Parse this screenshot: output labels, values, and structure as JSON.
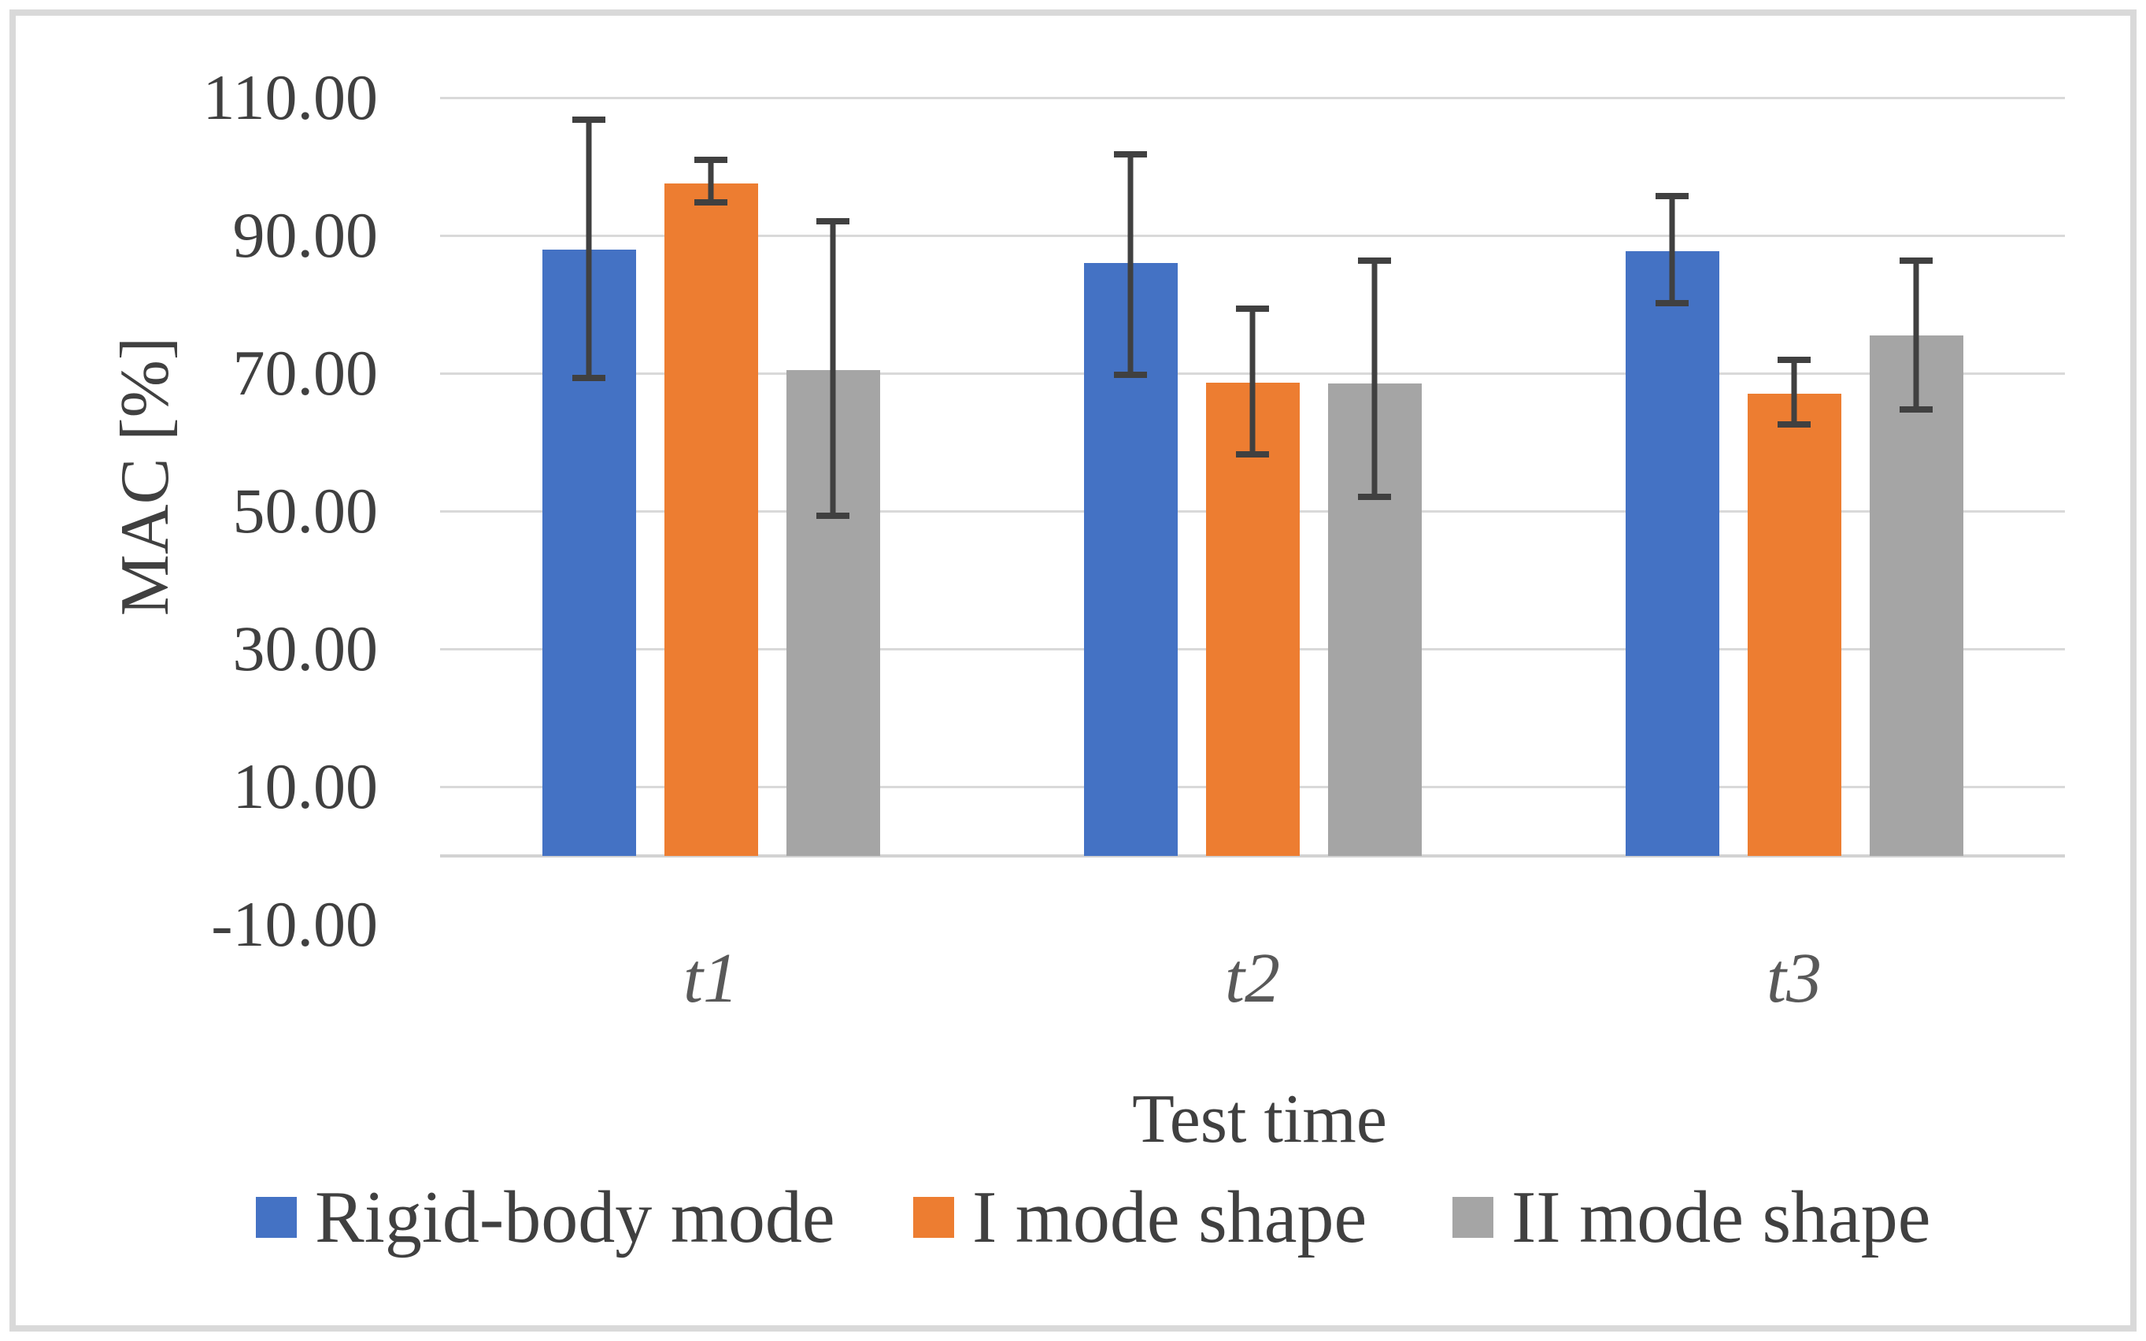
{
  "chart_data": {
    "type": "bar",
    "title": "",
    "xlabel": "Test time",
    "ylabel": "MAC [%]",
    "categories": [
      "t1",
      "t2",
      "t3"
    ],
    "y_ticks": [
      {
        "label": "110.00",
        "value": 110
      },
      {
        "label": "90.00",
        "value": 90
      },
      {
        "label": "70.00",
        "value": 70
      },
      {
        "label": "50.00",
        "value": 50
      },
      {
        "label": "30.00",
        "value": 30
      },
      {
        "label": "10.00",
        "value": 10
      },
      {
        "label": "-10.00",
        "value": -10
      }
    ],
    "ylim": [
      -10,
      110
    ],
    "baseline_value": 0,
    "grid": "horizontal-major",
    "legend_position": "bottom",
    "series": [
      {
        "name": "Rigid-body mode",
        "color": "#4472C4",
        "values": [
          88.0,
          86.0,
          87.7
        ],
        "error_low": [
          69.3,
          69.8,
          80.2
        ],
        "error_high": [
          106.8,
          101.8,
          95.7
        ]
      },
      {
        "name": "I mode shape",
        "color": "#ED7D31",
        "values": [
          97.5,
          68.6,
          67.0
        ],
        "error_low": [
          94.8,
          58.2,
          62.6
        ],
        "error_high": [
          101.0,
          79.4,
          72.0
        ]
      },
      {
        "name": "II mode shape",
        "color": "#A5A5A5",
        "values": [
          70.5,
          68.5,
          75.5
        ],
        "error_low": [
          49.3,
          52.1,
          64.8
        ],
        "error_high": [
          92.1,
          86.4,
          86.4
        ]
      }
    ],
    "colors": {
      "gridline": "#d9d9d9",
      "axis_line": "#d2d2d2",
      "error_bar": "#404040",
      "text": "#404040",
      "category_text": "#595959"
    }
  }
}
